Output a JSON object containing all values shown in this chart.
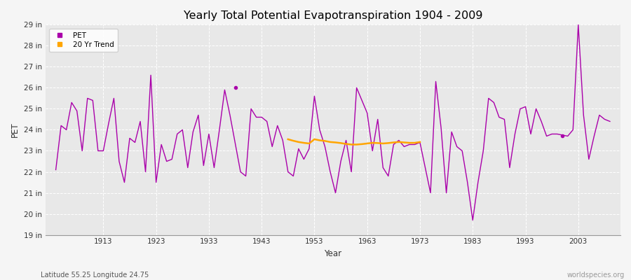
{
  "title": "Yearly Total Potential Evapotranspiration 1904 - 2009",
  "xlabel": "Year",
  "ylabel": "PET",
  "subtitle": "Latitude 55.25 Longitude 24.75",
  "watermark": "worldspecies.org",
  "ylim_min": 19,
  "ylim_max": 29,
  "pet_color": "#aa00aa",
  "trend_color": "#FFA500",
  "bg_color": "#f5f5f5",
  "plot_bg_color": "#e8e8e8",
  "years": [
    1904,
    1905,
    1906,
    1907,
    1908,
    1909,
    1910,
    1911,
    1912,
    1913,
    1914,
    1915,
    1916,
    1917,
    1918,
    1919,
    1920,
    1921,
    1922,
    1923,
    1924,
    1925,
    1926,
    1927,
    1928,
    1929,
    1930,
    1931,
    1932,
    1933,
    1934,
    1935,
    1936,
    1937,
    1939,
    1940,
    1941,
    1942,
    1943,
    1944,
    1945,
    1946,
    1947,
    1948,
    1949,
    1950,
    1951,
    1952,
    1953,
    1954,
    1955,
    1956,
    1957,
    1958,
    1959,
    1960,
    1961,
    1962,
    1963,
    1964,
    1965,
    1966,
    1967,
    1968,
    1969,
    1970,
    1971,
    1972,
    1973,
    1974,
    1975,
    1976,
    1977,
    1978,
    1979,
    1980,
    1981,
    1982,
    1983,
    1984,
    1985,
    1986,
    1987,
    1988,
    1989,
    1990,
    1991,
    1992,
    1993,
    1994,
    1995,
    1996,
    1997,
    1998,
    1999,
    2001,
    2002,
    2003,
    2004,
    2005,
    2006,
    2007,
    2008,
    2009
  ],
  "pet_values": [
    22.1,
    24.2,
    24.0,
    25.3,
    24.9,
    23.0,
    25.5,
    25.4,
    23.0,
    23.0,
    24.3,
    25.5,
    22.5,
    21.5,
    23.6,
    23.4,
    24.4,
    22.0,
    26.6,
    21.5,
    23.3,
    22.5,
    22.6,
    23.8,
    24.0,
    22.2,
    23.9,
    24.7,
    22.3,
    23.8,
    22.2,
    24.0,
    25.9,
    24.7,
    22.0,
    21.8,
    25.0,
    24.6,
    24.6,
    24.4,
    23.2,
    24.2,
    23.5,
    22.0,
    21.8,
    23.1,
    22.6,
    23.1,
    25.6,
    24.0,
    23.2,
    22.0,
    21.0,
    22.5,
    23.5,
    22.0,
    26.0,
    25.4,
    24.8,
    23.0,
    24.5,
    22.2,
    21.8,
    23.3,
    23.5,
    23.2,
    23.3,
    23.3,
    23.4,
    22.2,
    21.0,
    26.3,
    24.1,
    21.0,
    23.9,
    23.2,
    23.0,
    21.5,
    19.7,
    21.5,
    23.0,
    25.5,
    25.3,
    24.6,
    24.5,
    22.2,
    23.8,
    25.0,
    25.1,
    23.8,
    25.0,
    24.4,
    23.7,
    23.8,
    23.8,
    23.7,
    24.0,
    29.0,
    24.7,
    22.6,
    23.7,
    24.7,
    24.5,
    24.4
  ],
  "isolated_dot_year": 1938,
  "isolated_dot_value": 26.0,
  "isolated_dot2_year": 2000,
  "isolated_dot2_value": 23.7,
  "trend_years": [
    1948,
    1949,
    1950,
    1951,
    1952,
    1953,
    1954,
    1955,
    1956,
    1957,
    1958,
    1959,
    1960,
    1961,
    1962,
    1963,
    1964,
    1965,
    1966,
    1967,
    1968,
    1969,
    1970,
    1971,
    1972,
    1973
  ],
  "trend_values": [
    23.55,
    23.48,
    23.42,
    23.38,
    23.35,
    23.55,
    23.5,
    23.47,
    23.42,
    23.4,
    23.37,
    23.33,
    23.3,
    23.3,
    23.32,
    23.35,
    23.38,
    23.37,
    23.35,
    23.37,
    23.4,
    23.42,
    23.4,
    23.38,
    23.38,
    23.42
  ]
}
